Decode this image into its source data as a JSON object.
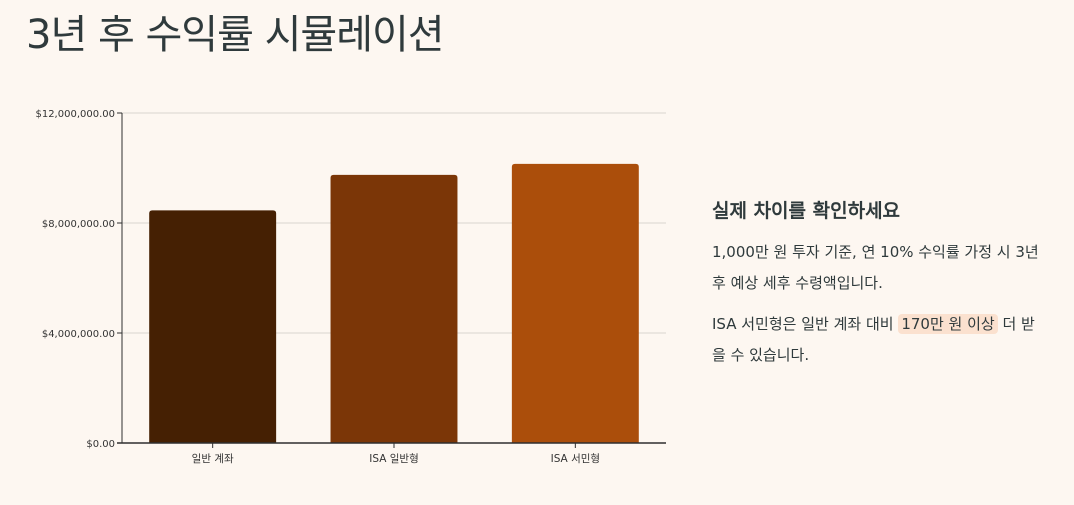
{
  "page": {
    "title": "3년 후 수익률 시뮬레이션"
  },
  "chart_data": {
    "type": "bar",
    "categories": [
      "일반 계좌",
      "ISA 일반형",
      "ISA 서민형"
    ],
    "values": [
      8460000,
      9750000,
      10150000
    ],
    "colors": [
      "#452003",
      "#7b3607",
      "#ab4e0b"
    ],
    "ylim": [
      0,
      12000000
    ],
    "yticks": [
      0,
      4000000,
      8000000,
      12000000
    ],
    "ytick_labels": [
      "$0.00",
      "$4,000,000.00",
      "$8,000,000.00",
      "$12,000,000.00"
    ],
    "grid": true,
    "title": "",
    "xlabel": "",
    "ylabel": ""
  },
  "side_panel": {
    "heading": "실제 차이를 확인하세요",
    "paragraph1": "1,000만 원 투자 기준, 연 10% 수익률 가정 시 3년 후 예상 세후 수령액입니다.",
    "paragraph2_before": "ISA 서민형은 일반 계좌 대비 ",
    "paragraph2_highlight": "170만 원 이상",
    "paragraph2_after": " 더 받을 수 있습니다."
  }
}
